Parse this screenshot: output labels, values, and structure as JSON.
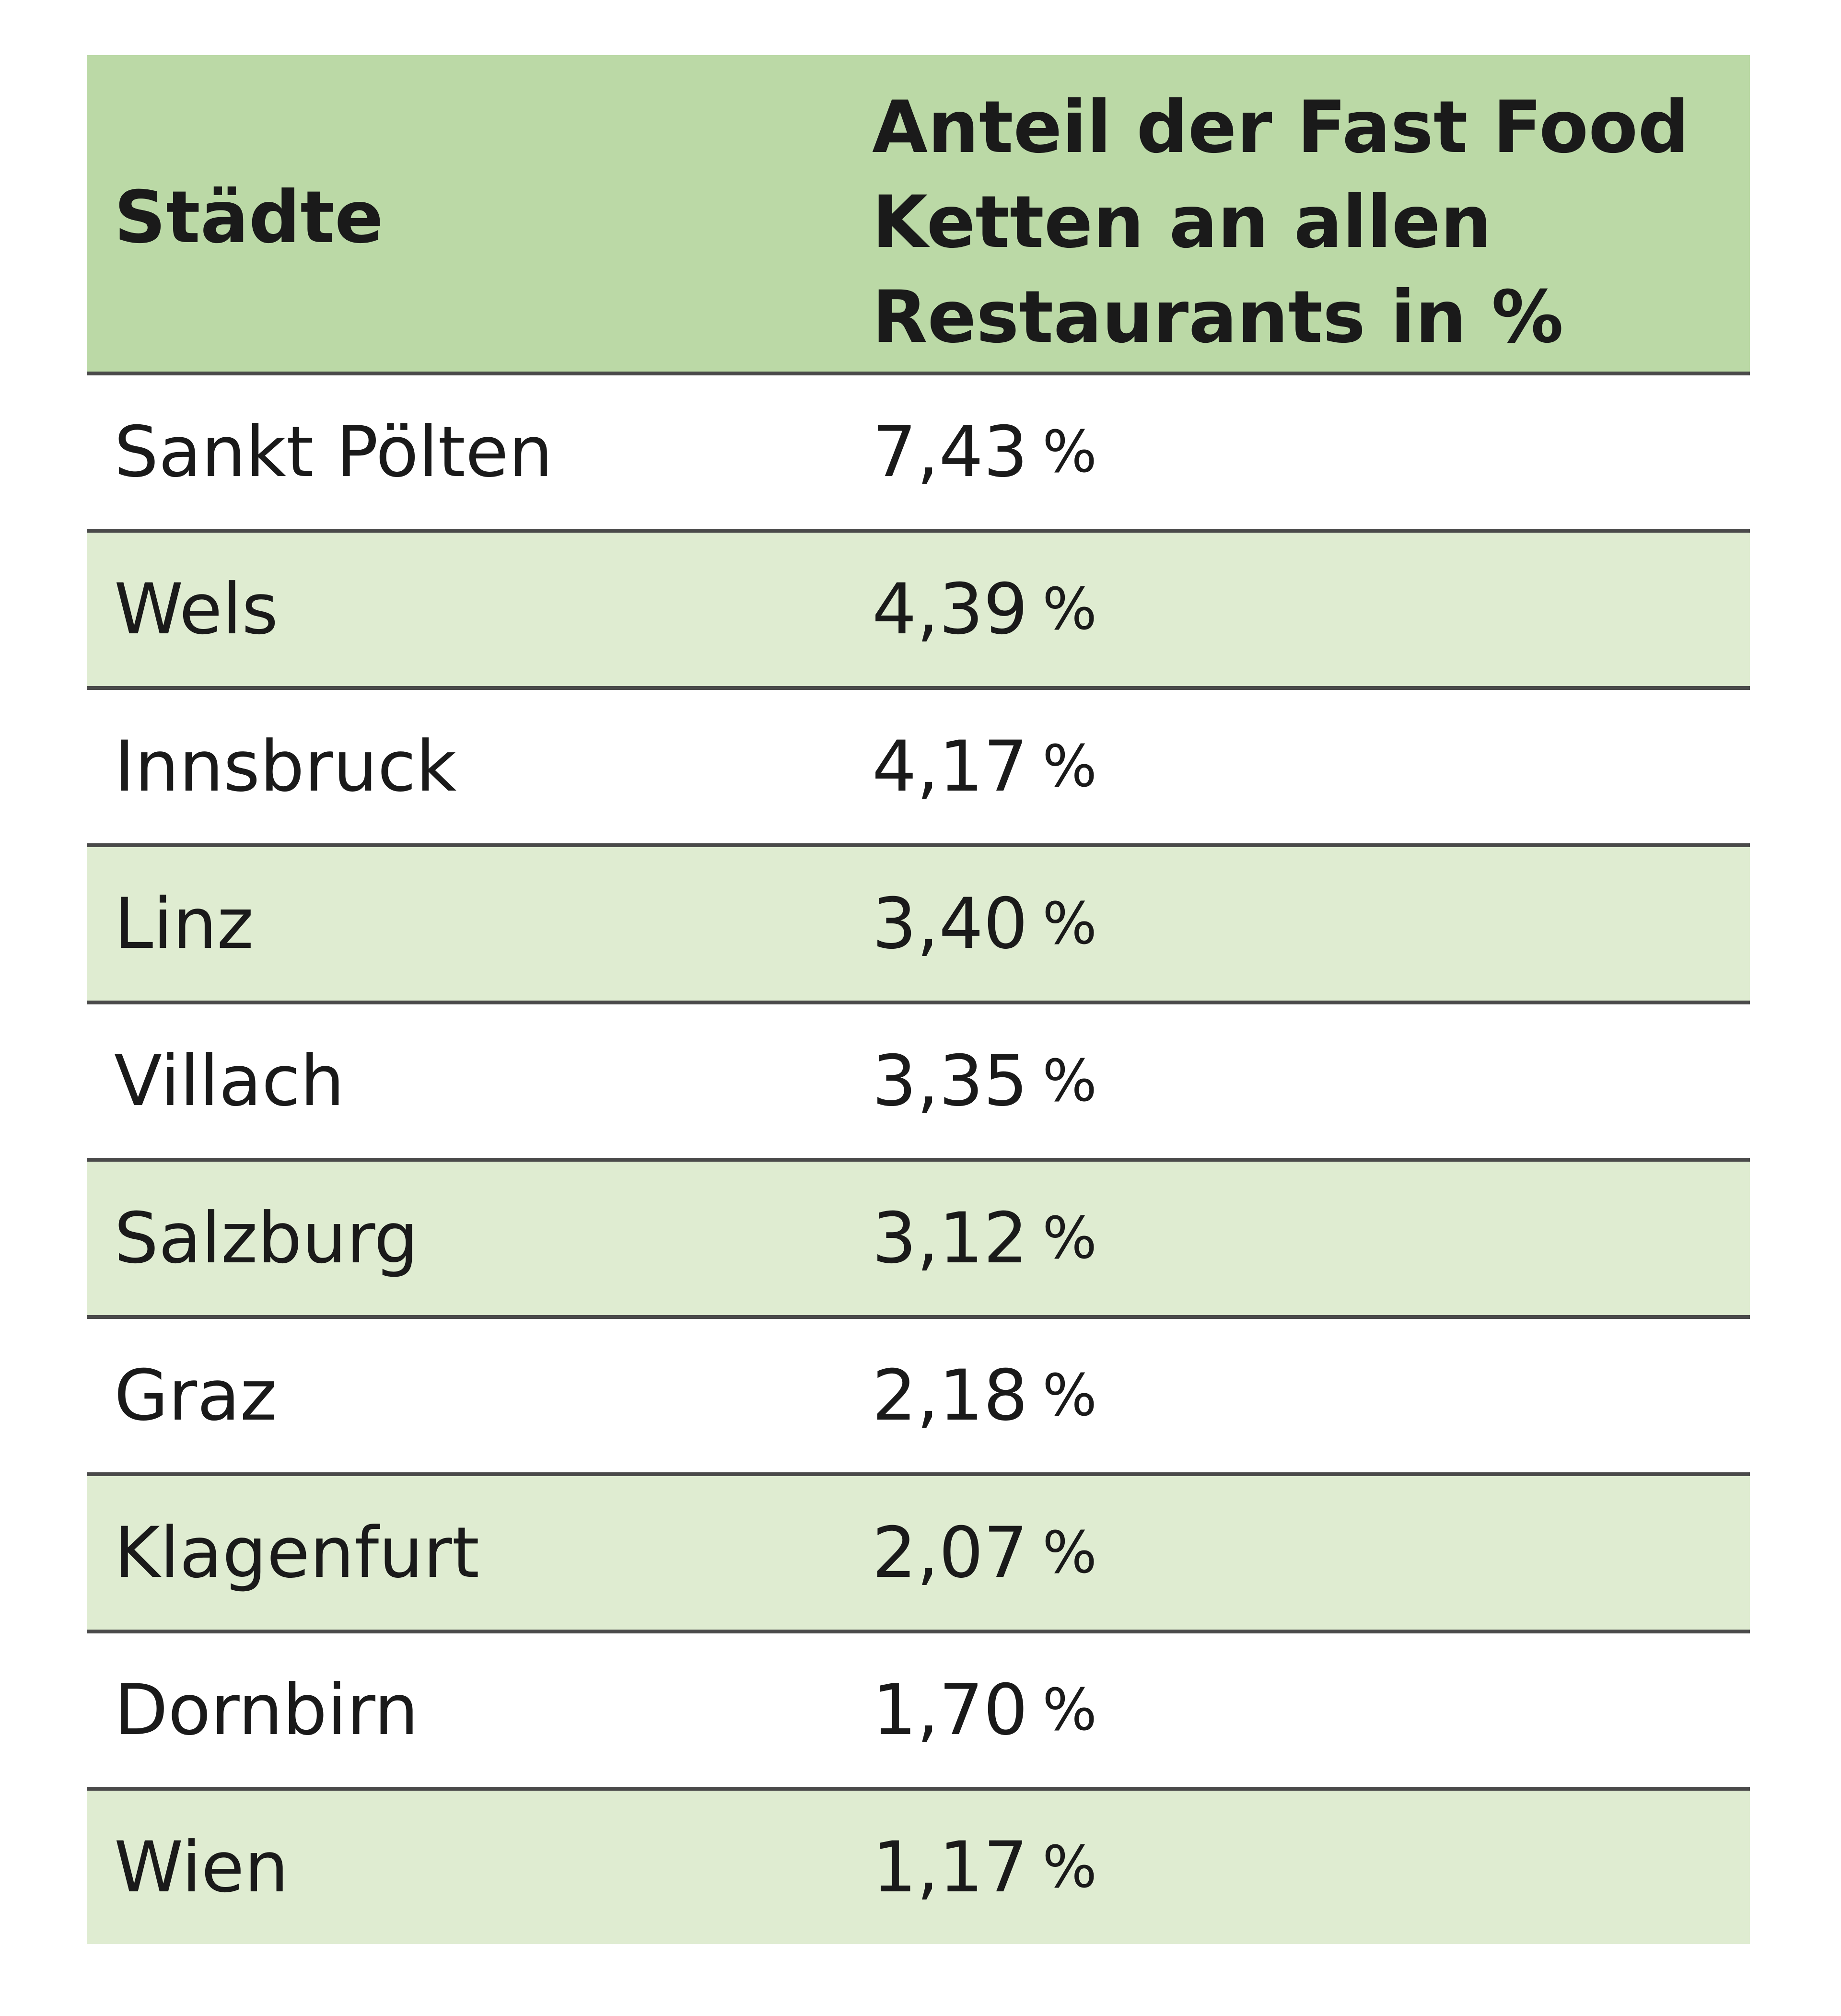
{
  "table": {
    "header": {
      "city": "Städte",
      "share": "Anteil der Fast Food Ketten an allen Restaurants in %"
    },
    "unit": "%",
    "rows": [
      {
        "city": "Sankt Pölten",
        "value": "7,43"
      },
      {
        "city": "Wels",
        "value": "4,39"
      },
      {
        "city": "Innsbruck",
        "value": "4,17"
      },
      {
        "city": "Linz",
        "value": "3,40"
      },
      {
        "city": "Villach",
        "value": "3,35"
      },
      {
        "city": "Salzburg",
        "value": "3,12"
      },
      {
        "city": "Graz",
        "value": "2,18"
      },
      {
        "city": "Klagenfurt",
        "value": "2,07"
      },
      {
        "city": "Dornbirn",
        "value": "1,70"
      },
      {
        "city": "Wien",
        "value": "1,17"
      }
    ]
  },
  "colors": {
    "header_bg": "#bbd9a6",
    "stripe_bg": "#dfecd1",
    "rule": "#4a4a4a"
  }
}
